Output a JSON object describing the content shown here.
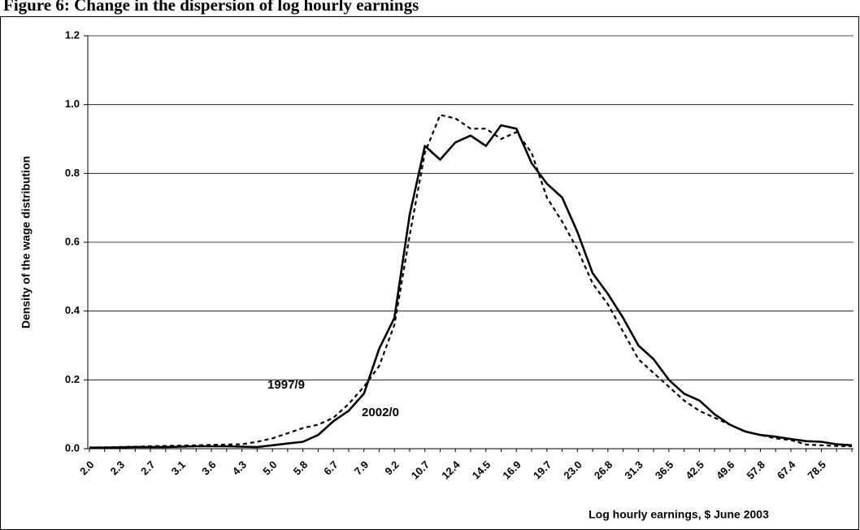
{
  "chart_data": {
    "type": "line",
    "title": "Figure 6: Change in the dispersion of log hourly earnings",
    "xlabel": "Log hourly earnings, $ June 2003",
    "ylabel": "Density of the wage distribution",
    "categories": [
      "2.0",
      null,
      "2.3",
      null,
      "2.7",
      null,
      "3.1",
      null,
      "3.6",
      null,
      "4.3",
      null,
      "5.0",
      null,
      "5.8",
      null,
      "6.7",
      null,
      "7.9",
      null,
      "9.2",
      null,
      "10.7",
      null,
      "12.4",
      null,
      "14.5",
      null,
      "16.9",
      null,
      "19.7",
      null,
      "23.0",
      null,
      "26.8",
      null,
      "31.3",
      null,
      "36.5",
      null,
      "42.5",
      null,
      "49.6",
      null,
      "57.8",
      null,
      "67.4",
      null,
      "78.5",
      null,
      null
    ],
    "series": [
      {
        "name": "2002/0",
        "color": "#000000",
        "dash": false,
        "values": [
          0.003,
          0.003,
          0.004,
          0.005,
          0.005,
          0.005,
          0.006,
          0.007,
          0.007,
          0.007,
          0.006,
          0.005,
          0.01,
          0.015,
          0.02,
          0.04,
          0.08,
          0.11,
          0.16,
          0.29,
          0.38,
          0.68,
          0.88,
          0.84,
          0.89,
          0.91,
          0.88,
          0.94,
          0.93,
          0.83,
          0.77,
          0.73,
          0.63,
          0.51,
          0.45,
          0.38,
          0.3,
          0.26,
          0.2,
          0.16,
          0.14,
          0.1,
          0.07,
          0.05,
          0.04,
          0.035,
          0.028,
          0.022,
          0.02,
          0.013,
          0.01
        ]
      },
      {
        "name": "1997/9",
        "color": "#000000",
        "dash": true,
        "values": [
          0.003,
          0.004,
          0.005,
          0.006,
          0.007,
          0.008,
          0.009,
          0.01,
          0.011,
          0.012,
          0.013,
          0.02,
          0.03,
          0.045,
          0.06,
          0.07,
          0.09,
          0.13,
          0.18,
          0.24,
          0.36,
          0.62,
          0.86,
          0.97,
          0.96,
          0.93,
          0.93,
          0.9,
          0.92,
          0.86,
          0.73,
          0.66,
          0.58,
          0.48,
          0.42,
          0.34,
          0.26,
          0.22,
          0.18,
          0.14,
          0.11,
          0.09,
          0.07,
          0.05,
          0.04,
          0.03,
          0.025,
          0.012,
          0.01,
          0.008,
          0.007
        ]
      }
    ],
    "annotations": [
      {
        "text": "1997/9",
        "series": 1
      },
      {
        "text": "2002/0",
        "series": 0
      }
    ],
    "ylim": [
      0,
      1.2
    ],
    "yticks": [
      {
        "value": 0,
        "label": "0.0"
      },
      0.2,
      0.4,
      0.6,
      0.8,
      {
        "value": 1,
        "label": "1.0"
      },
      1.2
    ],
    "grid": true
  }
}
